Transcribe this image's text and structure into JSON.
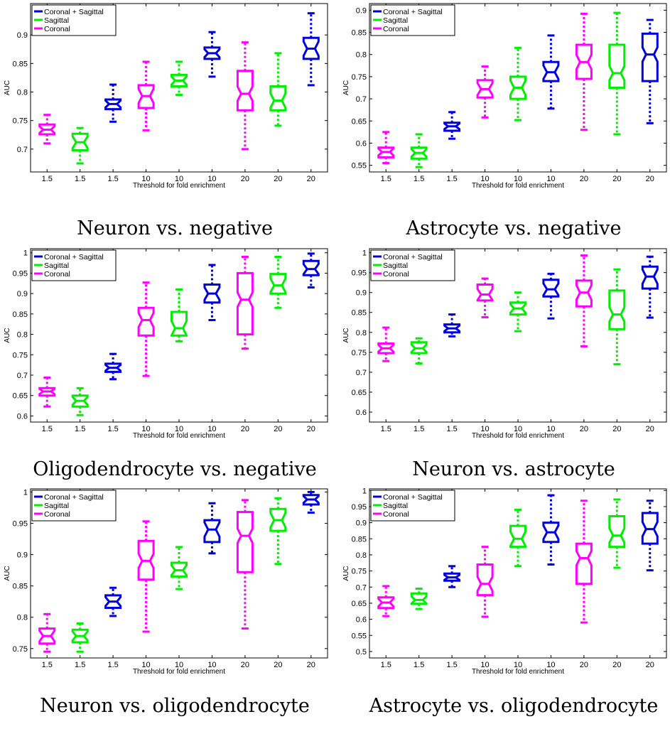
{
  "legend": [
    "Coronal + Sagittal",
    "Sagittal",
    "Coronal"
  ],
  "colors": {
    "Coronal + Sagittal": "#0000dd",
    "Sagittal": "#00ee00",
    "Coronal": "#ff00ff"
  },
  "chart_data": [
    {
      "type": "boxplot",
      "caption": "Neuron vs. negative",
      "xlabel": "Threshold for fold enrichment",
      "ylabel": "AUC",
      "ylim": [
        0.66,
        0.955
      ],
      "yticks": [
        0.7,
        0.75,
        0.8,
        0.85,
        0.9
      ],
      "legend_position": "top-left",
      "categories": [
        "1.5",
        "1.5",
        "1.5",
        "10",
        "10",
        "10",
        "20",
        "20",
        "20"
      ],
      "boxes": [
        {
          "group": "Coronal",
          "whisker_low": 0.71,
          "q1": 0.726,
          "median": 0.734,
          "q3": 0.743,
          "whisker_high": 0.76
        },
        {
          "group": "Sagittal",
          "whisker_low": 0.675,
          "q1": 0.698,
          "median": 0.712,
          "q3": 0.727,
          "whisker_high": 0.737
        },
        {
          "group": "Coronal + Sagittal",
          "whisker_low": 0.748,
          "q1": 0.77,
          "median": 0.779,
          "q3": 0.787,
          "whisker_high": 0.813
        },
        {
          "group": "Coronal",
          "whisker_low": 0.733,
          "q1": 0.772,
          "median": 0.793,
          "q3": 0.812,
          "whisker_high": 0.853
        },
        {
          "group": "Sagittal",
          "whisker_low": 0.795,
          "q1": 0.81,
          "median": 0.82,
          "q3": 0.83,
          "whisker_high": 0.853
        },
        {
          "group": "Coronal + Sagittal",
          "whisker_low": 0.827,
          "q1": 0.858,
          "median": 0.868,
          "q3": 0.878,
          "whisker_high": 0.905
        },
        {
          "group": "Coronal",
          "whisker_low": 0.7,
          "q1": 0.768,
          "median": 0.797,
          "q3": 0.837,
          "whisker_high": 0.887
        },
        {
          "group": "Sagittal",
          "whisker_low": 0.741,
          "q1": 0.768,
          "median": 0.785,
          "q3": 0.81,
          "whisker_high": 0.868
        },
        {
          "group": "Coronal + Sagittal",
          "whisker_low": 0.812,
          "q1": 0.858,
          "median": 0.876,
          "q3": 0.895,
          "whisker_high": 0.938
        }
      ]
    },
    {
      "type": "boxplot",
      "caption": "Astrocyte vs. negative",
      "xlabel": "Threshold for fold enrichment",
      "ylabel": "AUC",
      "ylim": [
        0.535,
        0.915
      ],
      "yticks": [
        0.55,
        0.6,
        0.65,
        0.7,
        0.75,
        0.8,
        0.85,
        0.9
      ],
      "legend_position": "top-left",
      "categories": [
        "1.5",
        "1.5",
        "1.5",
        "10",
        "10",
        "10",
        "20",
        "20",
        "20"
      ],
      "boxes": [
        {
          "group": "Coronal",
          "whisker_low": 0.555,
          "q1": 0.568,
          "median": 0.58,
          "q3": 0.59,
          "whisker_high": 0.625
        },
        {
          "group": "Sagittal",
          "whisker_low": 0.546,
          "q1": 0.565,
          "median": 0.578,
          "q3": 0.59,
          "whisker_high": 0.62
        },
        {
          "group": "Coronal + Sagittal",
          "whisker_low": 0.61,
          "q1": 0.628,
          "median": 0.638,
          "q3": 0.646,
          "whisker_high": 0.67
        },
        {
          "group": "Coronal",
          "whisker_low": 0.658,
          "q1": 0.703,
          "median": 0.722,
          "q3": 0.742,
          "whisker_high": 0.773
        },
        {
          "group": "Sagittal",
          "whisker_low": 0.652,
          "q1": 0.7,
          "median": 0.725,
          "q3": 0.75,
          "whisker_high": 0.815
        },
        {
          "group": "Coronal + Sagittal",
          "whisker_low": 0.678,
          "q1": 0.74,
          "median": 0.76,
          "q3": 0.783,
          "whisker_high": 0.843
        },
        {
          "group": "Coronal",
          "whisker_low": 0.63,
          "q1": 0.745,
          "median": 0.783,
          "q3": 0.822,
          "whisker_high": 0.892
        },
        {
          "group": "Sagittal",
          "whisker_low": 0.62,
          "q1": 0.725,
          "median": 0.758,
          "q3": 0.822,
          "whisker_high": 0.894
        },
        {
          "group": "Coronal + Sagittal",
          "whisker_low": 0.645,
          "q1": 0.74,
          "median": 0.8,
          "q3": 0.847,
          "whisker_high": 0.878
        }
      ]
    },
    {
      "type": "boxplot",
      "caption": "Oligodendrocyte vs. negative",
      "xlabel": "Threshold for fold enrichment",
      "ylabel": "AUC",
      "ylim": [
        0.585,
        1.01
      ],
      "yticks": [
        0.6,
        0.65,
        0.7,
        0.75,
        0.8,
        0.85,
        0.9,
        0.95,
        1
      ],
      "legend_position": "top-left",
      "categories": [
        "1.5",
        "1.5",
        "1.5",
        "10",
        "10",
        "10",
        "20",
        "20",
        "20"
      ],
      "boxes": [
        {
          "group": "Coronal",
          "whisker_low": 0.623,
          "q1": 0.65,
          "median": 0.66,
          "q3": 0.668,
          "whisker_high": 0.694
        },
        {
          "group": "Sagittal",
          "whisker_low": 0.602,
          "q1": 0.623,
          "median": 0.637,
          "q3": 0.65,
          "whisker_high": 0.668
        },
        {
          "group": "Coronal + Sagittal",
          "whisker_low": 0.69,
          "q1": 0.708,
          "median": 0.718,
          "q3": 0.728,
          "whisker_high": 0.752
        },
        {
          "group": "Coronal",
          "whisker_low": 0.698,
          "q1": 0.797,
          "median": 0.835,
          "q3": 0.865,
          "whisker_high": 0.927
        },
        {
          "group": "Sagittal",
          "whisker_low": 0.783,
          "q1": 0.797,
          "median": 0.815,
          "q3": 0.855,
          "whisker_high": 0.91
        },
        {
          "group": "Coronal + Sagittal",
          "whisker_low": 0.835,
          "q1": 0.878,
          "median": 0.9,
          "q3": 0.922,
          "whisker_high": 0.97
        },
        {
          "group": "Coronal",
          "whisker_low": 0.765,
          "q1": 0.8,
          "median": 0.885,
          "q3": 0.95,
          "whisker_high": 0.99
        },
        {
          "group": "Sagittal",
          "whisker_low": 0.865,
          "q1": 0.9,
          "median": 0.92,
          "q3": 0.948,
          "whisker_high": 0.99
        },
        {
          "group": "Coronal + Sagittal",
          "whisker_low": 0.915,
          "q1": 0.945,
          "median": 0.96,
          "q3": 0.98,
          "whisker_high": 0.998
        }
      ]
    },
    {
      "type": "boxplot",
      "caption": "Neuron vs. astrocyte",
      "xlabel": "Threshold for fold enrichment",
      "ylabel": "AUC",
      "ylim": [
        0.575,
        1.01
      ],
      "yticks": [
        0.6,
        0.65,
        0.7,
        0.75,
        0.8,
        0.85,
        0.9,
        0.95,
        1
      ],
      "legend_position": "top-left",
      "categories": [
        "1.5",
        "1.5",
        "1.5",
        "10",
        "10",
        "10",
        "20",
        "20",
        "20"
      ],
      "boxes": [
        {
          "group": "Coronal",
          "whisker_low": 0.728,
          "q1": 0.748,
          "median": 0.76,
          "q3": 0.772,
          "whisker_high": 0.812
        },
        {
          "group": "Sagittal",
          "whisker_low": 0.722,
          "q1": 0.748,
          "median": 0.76,
          "q3": 0.775,
          "whisker_high": 0.785
        },
        {
          "group": "Coronal + Sagittal",
          "whisker_low": 0.79,
          "q1": 0.8,
          "median": 0.81,
          "q3": 0.82,
          "whisker_high": 0.845
        },
        {
          "group": "Coronal",
          "whisker_low": 0.838,
          "q1": 0.88,
          "median": 0.895,
          "q3": 0.92,
          "whisker_high": 0.935
        },
        {
          "group": "Sagittal",
          "whisker_low": 0.803,
          "q1": 0.845,
          "median": 0.86,
          "q3": 0.875,
          "whisker_high": 0.9
        },
        {
          "group": "Coronal + Sagittal",
          "whisker_low": 0.835,
          "q1": 0.89,
          "median": 0.908,
          "q3": 0.932,
          "whisker_high": 0.947
        },
        {
          "group": "Coronal",
          "whisker_low": 0.765,
          "q1": 0.865,
          "median": 0.9,
          "q3": 0.93,
          "whisker_high": 0.993
        },
        {
          "group": "Sagittal",
          "whisker_low": 0.72,
          "q1": 0.808,
          "median": 0.845,
          "q3": 0.905,
          "whisker_high": 0.958
        },
        {
          "group": "Coronal + Sagittal",
          "whisker_low": 0.837,
          "q1": 0.91,
          "median": 0.94,
          "q3": 0.965,
          "whisker_high": 0.99
        }
      ]
    },
    {
      "type": "boxplot",
      "caption": "Neuron vs. oligodendrocyte",
      "xlabel": "Threshold for fold enrichment",
      "ylabel": "AUC",
      "ylim": [
        0.735,
        1.005
      ],
      "yticks": [
        0.75,
        0.8,
        0.85,
        0.9,
        0.95,
        1
      ],
      "legend_position": "top-left",
      "categories": [
        "1.5",
        "1.5",
        "1.5",
        "10",
        "10",
        "10",
        "20",
        "20",
        "20"
      ],
      "boxes": [
        {
          "group": "Coronal",
          "whisker_low": 0.745,
          "q1": 0.758,
          "median": 0.77,
          "q3": 0.782,
          "whisker_high": 0.805
        },
        {
          "group": "Sagittal",
          "whisker_low": 0.745,
          "q1": 0.76,
          "median": 0.77,
          "q3": 0.78,
          "whisker_high": 0.79
        },
        {
          "group": "Coronal + Sagittal",
          "whisker_low": 0.802,
          "q1": 0.815,
          "median": 0.825,
          "q3": 0.835,
          "whisker_high": 0.847
        },
        {
          "group": "Coronal",
          "whisker_low": 0.777,
          "q1": 0.86,
          "median": 0.89,
          "q3": 0.922,
          "whisker_high": 0.953
        },
        {
          "group": "Sagittal",
          "whisker_low": 0.845,
          "q1": 0.865,
          "median": 0.875,
          "q3": 0.887,
          "whisker_high": 0.912
        },
        {
          "group": "Coronal + Sagittal",
          "whisker_low": 0.902,
          "q1": 0.92,
          "median": 0.94,
          "q3": 0.955,
          "whisker_high": 0.982
        },
        {
          "group": "Coronal",
          "whisker_low": 0.782,
          "q1": 0.872,
          "median": 0.93,
          "q3": 0.968,
          "whisker_high": 0.987
        },
        {
          "group": "Sagittal",
          "whisker_low": 0.885,
          "q1": 0.938,
          "median": 0.955,
          "q3": 0.973,
          "whisker_high": 0.99
        },
        {
          "group": "Coronal + Sagittal",
          "whisker_low": 0.967,
          "q1": 0.98,
          "median": 0.988,
          "q3": 0.995,
          "whisker_high": 1.0
        }
      ]
    },
    {
      "type": "boxplot",
      "caption": "Astrocyte vs. oligodendrocyte",
      "xlabel": "Threshold for fold enrichment",
      "ylabel": "AUC",
      "ylim": [
        0.48,
        1.005
      ],
      "yticks": [
        0.5,
        0.55,
        0.6,
        0.65,
        0.7,
        0.75,
        0.8,
        0.85,
        0.9,
        0.95,
        1
      ],
      "legend_position": "top-left",
      "categories": [
        "1.5",
        "1.5",
        "1.5",
        "10",
        "10",
        "10",
        "20",
        "20",
        "20"
      ],
      "boxes": [
        {
          "group": "Coronal",
          "whisker_low": 0.61,
          "q1": 0.635,
          "median": 0.652,
          "q3": 0.668,
          "whisker_high": 0.703
        },
        {
          "group": "Sagittal",
          "whisker_low": 0.632,
          "q1": 0.648,
          "median": 0.66,
          "q3": 0.68,
          "whisker_high": 0.695
        },
        {
          "group": "Coronal + Sagittal",
          "whisker_low": 0.7,
          "q1": 0.72,
          "median": 0.73,
          "q3": 0.742,
          "whisker_high": 0.765
        },
        {
          "group": "Coronal",
          "whisker_low": 0.608,
          "q1": 0.675,
          "median": 0.71,
          "q3": 0.77,
          "whisker_high": 0.825
        },
        {
          "group": "Sagittal",
          "whisker_low": 0.765,
          "q1": 0.825,
          "median": 0.85,
          "q3": 0.89,
          "whisker_high": 0.94
        },
        {
          "group": "Coronal + Sagittal",
          "whisker_low": 0.77,
          "q1": 0.84,
          "median": 0.87,
          "q3": 0.9,
          "whisker_high": 0.985
        },
        {
          "group": "Coronal",
          "whisker_low": 0.59,
          "q1": 0.71,
          "median": 0.79,
          "q3": 0.835,
          "whisker_high": 0.968
        },
        {
          "group": "Sagittal",
          "whisker_low": 0.76,
          "q1": 0.825,
          "median": 0.86,
          "q3": 0.92,
          "whisker_high": 0.972
        },
        {
          "group": "Coronal + Sagittal",
          "whisker_low": 0.752,
          "q1": 0.835,
          "median": 0.88,
          "q3": 0.93,
          "whisker_high": 0.968
        }
      ]
    }
  ]
}
